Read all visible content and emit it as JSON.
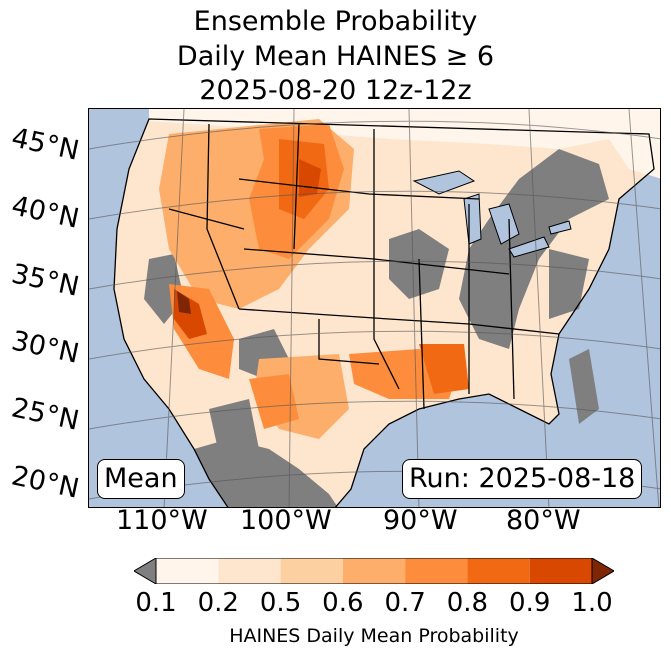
{
  "title": {
    "line1": "Ensemble Probability",
    "line2": "Daily Mean HAINES ≥ 6",
    "line3": "2025-08-20 12z-12z"
  },
  "lat_labels": [
    "45°N",
    "40°N",
    "35°N",
    "30°N",
    "25°N",
    "20°N"
  ],
  "lon_labels": [
    "110°W",
    "100°W",
    "90°W",
    "80°W"
  ],
  "stat_label": "Mean",
  "run_label": "Run: 2025-08-18",
  "colorbar": {
    "label": "HAINES Daily Mean Probability",
    "ticks": [
      "0.1",
      "0.2",
      "0.5",
      "0.6",
      "0.7",
      "0.8",
      "0.9",
      "1.0"
    ],
    "under_color": "#7f7f7f",
    "over_color": "#7f2704",
    "colors": [
      "#fff5eb",
      "#fee6ce",
      "#fdd0a2",
      "#fdae6b",
      "#fd8d3c",
      "#f16913",
      "#d94801"
    ]
  },
  "colors": {
    "ocean": "#b0c4de",
    "land_low": "#7f7f7f"
  }
}
